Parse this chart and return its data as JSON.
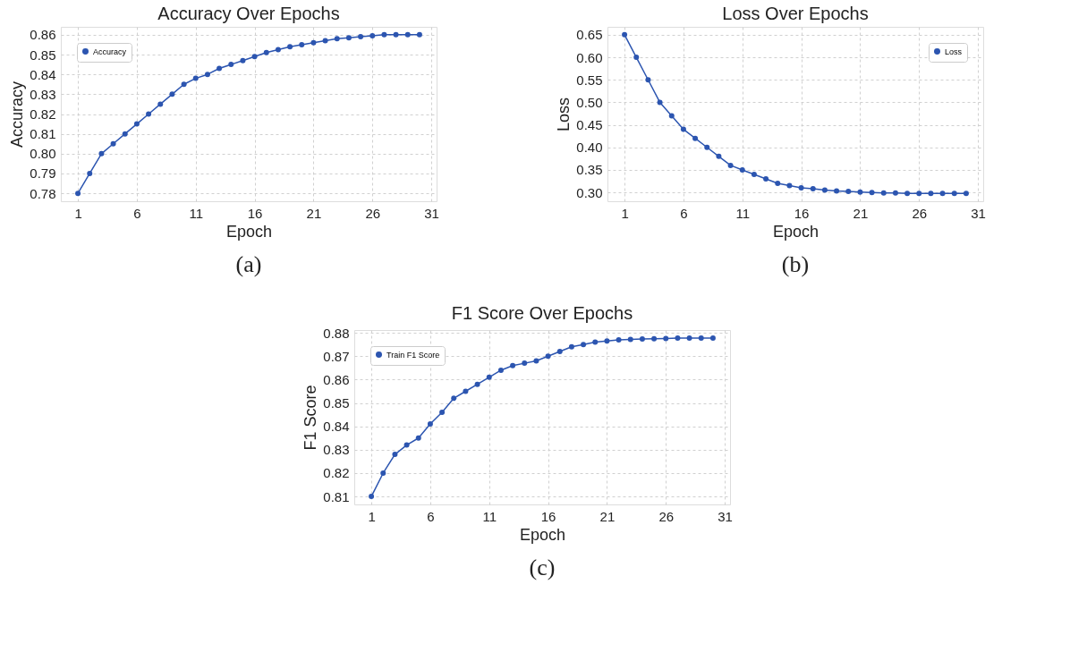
{
  "chart_data": [
    {
      "type": "line",
      "title": "Accuracy Over Epochs",
      "xlabel": "Epoch",
      "ylabel": "Accuracy",
      "annotations": [
        "(a)"
      ],
      "x": [
        1,
        2,
        3,
        4,
        5,
        6,
        7,
        8,
        9,
        10,
        11,
        12,
        13,
        14,
        15,
        16,
        17,
        18,
        19,
        20,
        21,
        22,
        23,
        24,
        25,
        26,
        27,
        28,
        29,
        30
      ],
      "series": [
        {
          "name": "Accuracy",
          "color": "#2c55b0",
          "values": [
            0.78,
            0.79,
            0.8,
            0.805,
            0.81,
            0.815,
            0.82,
            0.825,
            0.83,
            0.835,
            0.838,
            0.84,
            0.843,
            0.845,
            0.847,
            0.849,
            0.851,
            0.8525,
            0.854,
            0.855,
            0.856,
            0.857,
            0.858,
            0.8585,
            0.859,
            0.8595,
            0.86,
            0.86,
            0.86,
            0.86
          ]
        }
      ],
      "xlim": [
        -0.45,
        31.45
      ],
      "xticks": [
        1,
        6,
        11,
        16,
        21,
        26,
        31
      ],
      "ylim": [
        0.776,
        0.864
      ],
      "yticks": [
        0.78,
        0.79,
        {
          "value": 0.8,
          "label": "0.80"
        },
        0.81,
        0.82,
        0.83,
        0.84,
        0.85,
        0.86
      ],
      "grid": true,
      "legend": "top left",
      "marker": "circle",
      "line_style": "solid"
    },
    {
      "type": "line",
      "title": "Loss Over Epochs",
      "xlabel": "Epoch",
      "ylabel": "Loss",
      "annotations": [
        "(b)"
      ],
      "x": [
        1,
        2,
        3,
        4,
        5,
        6,
        7,
        8,
        9,
        10,
        11,
        12,
        13,
        14,
        15,
        16,
        17,
        18,
        19,
        20,
        21,
        22,
        23,
        24,
        25,
        26,
        27,
        28,
        29,
        30
      ],
      "series": [
        {
          "name": "Loss",
          "color": "#2c55b0",
          "values": [
            0.65,
            0.6,
            0.55,
            0.5,
            0.47,
            0.44,
            0.42,
            0.4,
            0.38,
            0.36,
            0.35,
            0.34,
            0.33,
            0.32,
            0.315,
            0.31,
            0.308,
            0.305,
            0.303,
            0.302,
            0.301,
            0.3,
            0.299,
            0.299,
            0.298,
            0.298,
            0.298,
            0.298,
            0.298,
            0.298
          ]
        }
      ],
      "xlim": [
        -0.45,
        31.45
      ],
      "xticks": [
        1,
        6,
        11,
        16,
        21,
        26,
        31
      ],
      "ylim": [
        0.2804,
        0.6676
      ],
      "yticks": [
        {
          "value": 0.3,
          "label": "0.30"
        },
        {
          "value": 0.35,
          "label": "0.35"
        },
        {
          "value": 0.4,
          "label": "0.40"
        },
        {
          "value": 0.45,
          "label": "0.45"
        },
        {
          "value": 0.5,
          "label": "0.50"
        },
        {
          "value": 0.55,
          "label": "0.55"
        },
        {
          "value": 0.6,
          "label": "0.60"
        },
        {
          "value": 0.65,
          "label": "0.65"
        }
      ],
      "grid": true,
      "legend": "top right",
      "marker": "circle",
      "line_style": "solid"
    },
    {
      "type": "line",
      "title": "F1 Score Over Epochs",
      "xlabel": "Epoch",
      "ylabel": "F1 Score",
      "annotations": [
        "(c)"
      ],
      "x": [
        1,
        2,
        3,
        4,
        5,
        6,
        7,
        8,
        9,
        10,
        11,
        12,
        13,
        14,
        15,
        16,
        17,
        18,
        19,
        20,
        21,
        22,
        23,
        24,
        25,
        26,
        27,
        28,
        29,
        30
      ],
      "series": [
        {
          "name": "Train F1 Score",
          "color": "#2c55b0",
          "values": [
            0.81,
            0.82,
            0.828,
            0.832,
            0.835,
            0.841,
            0.846,
            0.852,
            0.855,
            0.858,
            0.861,
            0.864,
            0.866,
            0.867,
            0.868,
            0.87,
            0.872,
            0.874,
            0.875,
            0.876,
            0.8765,
            0.877,
            0.8772,
            0.8774,
            0.8775,
            0.8776,
            0.8778,
            0.8778,
            0.8778,
            0.8778
          ]
        }
      ],
      "xlim": [
        -0.45,
        31.45
      ],
      "xticks": [
        1,
        6,
        11,
        16,
        21,
        26,
        31
      ],
      "ylim": [
        0.8066,
        0.8812
      ],
      "yticks": [
        0.81,
        0.82,
        0.83,
        0.84,
        0.85,
        0.86,
        0.87,
        0.88
      ],
      "grid": true,
      "legend": "top left",
      "marker": "circle",
      "line_style": "solid"
    }
  ]
}
